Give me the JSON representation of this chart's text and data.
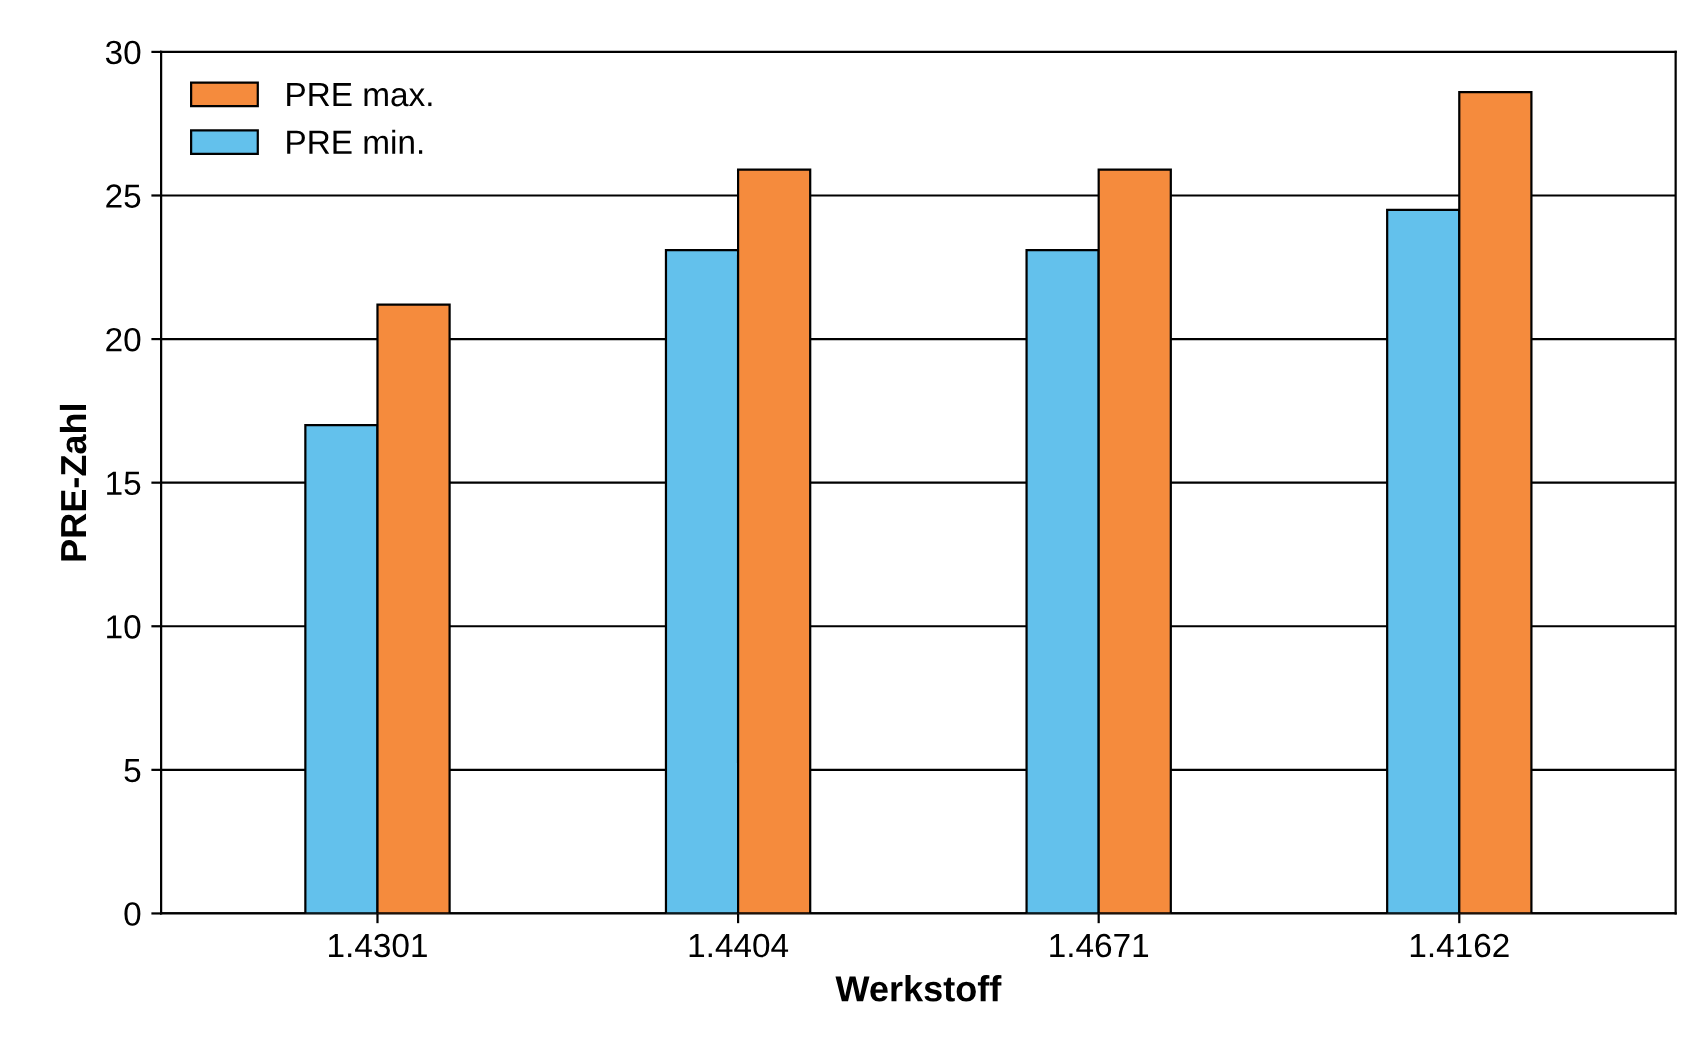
{
  "chart_data": {
    "type": "bar",
    "xlabel": "Werkstoff",
    "ylabel": "PRE-Zahl",
    "categories": [
      "1.4301",
      "1.4404",
      "1.4671",
      "1.4162"
    ],
    "series": [
      {
        "name": "PRE min.",
        "color": "#63c1ec",
        "values": [
          17.0,
          23.1,
          23.1,
          24.5
        ]
      },
      {
        "name": "PRE max.",
        "color": "#f58b3d",
        "values": [
          21.2,
          25.9,
          25.9,
          28.6
        ]
      }
    ],
    "ylim": [
      0,
      30
    ],
    "yticks": [
      0,
      5,
      10,
      15,
      20,
      25,
      30
    ],
    "grid": "y",
    "legend": "top left"
  }
}
